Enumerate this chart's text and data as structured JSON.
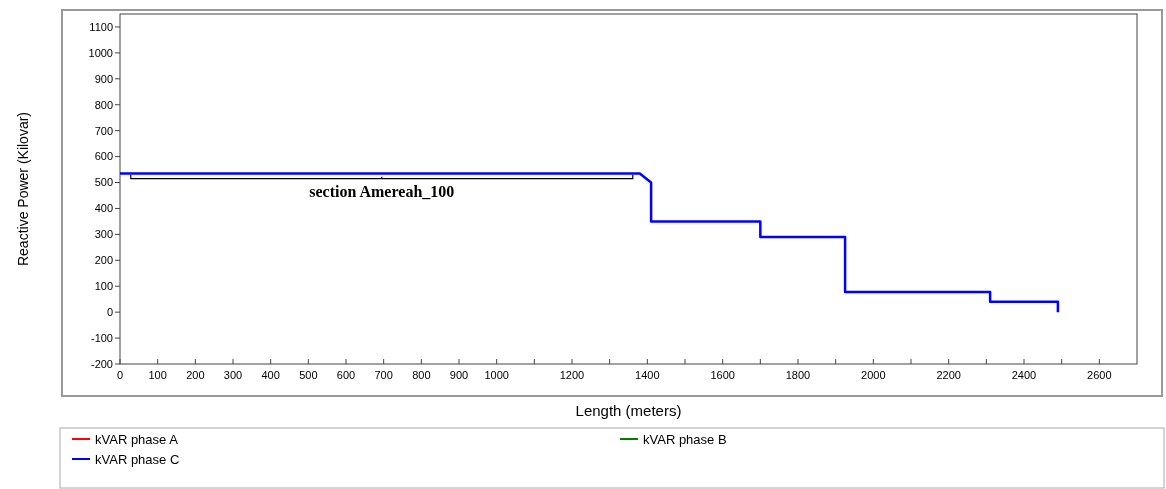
{
  "chart_data": {
    "type": "line",
    "xlabel": "Length (meters)",
    "ylabel": "Reactive Power (Kilovar)",
    "xlim": [
      0,
      2700
    ],
    "ylim": [
      -200,
      1150
    ],
    "xticks": [
      0,
      100,
      200,
      300,
      400,
      500,
      600,
      700,
      800,
      900,
      1000,
      {
        "value": 1100,
        "label": null
      },
      1200,
      {
        "value": 1300,
        "label": null
      },
      1400,
      {
        "value": 1500,
        "label": null
      },
      1600,
      {
        "value": 1700,
        "label": null
      },
      1800,
      {
        "value": 1900,
        "label": null
      },
      2000,
      {
        "value": 2100,
        "label": null
      },
      2200,
      {
        "value": 2300,
        "label": null
      },
      2400,
      {
        "value": 2500,
        "label": null
      },
      2600
    ],
    "yticks": [
      -200,
      -100,
      0,
      100,
      200,
      300,
      400,
      500,
      600,
      700,
      800,
      900,
      1000,
      1100
    ],
    "annotations": [
      {
        "text": "section Amereah_100",
        "x": 695,
        "y": 515
      }
    ],
    "legend": "bottom",
    "grid": false,
    "series": [
      {
        "name": "kVAR phase A",
        "color": "#ff0000"
      },
      {
        "name": "kVAR phase B",
        "color": "#008000"
      },
      {
        "name": "kVAR phase C",
        "color": "#0000ff",
        "x": [
          0,
          1380,
          1410,
          1410,
          1700,
          1700,
          1925,
          1925,
          2310,
          2310,
          2490,
          2490
        ],
        "values": [
          535,
          535,
          500,
          350,
          350,
          290,
          290,
          78,
          78,
          40,
          40,
          0
        ]
      }
    ]
  }
}
